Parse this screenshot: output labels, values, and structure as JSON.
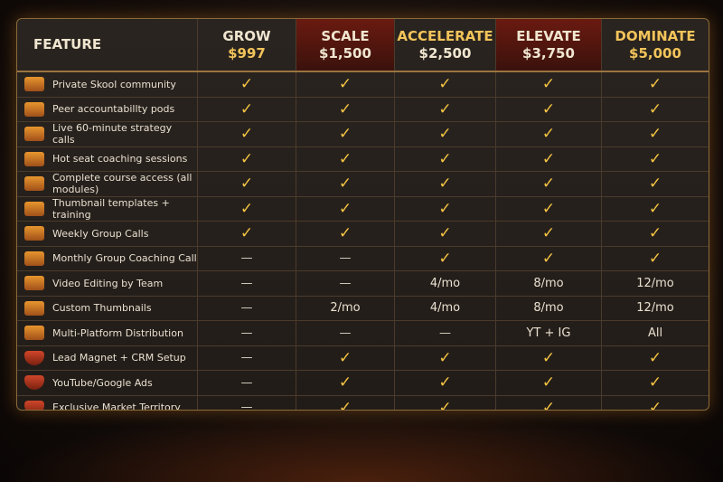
{
  "header": {
    "feature": "FEATURE",
    "plans": [
      {
        "name": "GROW",
        "price": "$997"
      },
      {
        "name": "SCALE",
        "price": "$1,500"
      },
      {
        "name": "ACCELERATE",
        "price": "$2,500"
      },
      {
        "name": "ELEVATE",
        "price": "$3,750"
      },
      {
        "name": "DOMINATE",
        "price": "$5,000"
      }
    ]
  },
  "rows": [
    {
      "feature": "Private Skool community",
      "icon": "chat-icon",
      "v": [
        "✓",
        "✓",
        "✓",
        "✓",
        "✓"
      ]
    },
    {
      "feature": "Peer accountabillty pods",
      "icon": "group-icon",
      "v": [
        "✓",
        "✓",
        "✓",
        "✓",
        "✓"
      ]
    },
    {
      "feature": "Live 60-minute strategy calls",
      "icon": "clock-icon",
      "v": [
        "✓",
        "✓",
        "✓",
        "✓",
        "✓"
      ]
    },
    {
      "feature": "Hot seat coaching sessions",
      "icon": "coaching-icon",
      "v": [
        "✓",
        "✓",
        "✓",
        "✓",
        "✓"
      ]
    },
    {
      "feature": "Complete course access (all modules)",
      "icon": "video-icon",
      "v": [
        "✓",
        "✓",
        "✓",
        "✓",
        "✓"
      ]
    },
    {
      "feature": "Thumbnail templates + training",
      "icon": "group-icon",
      "v": [
        "✓",
        "✓",
        "✓",
        "✓",
        "✓"
      ]
    },
    {
      "feature": "Weekly Group Calls",
      "icon": "group-icon",
      "v": [
        "✓",
        "✓",
        "✓",
        "✓",
        "✓"
      ]
    },
    {
      "feature": "Monthly Group Coaching Call",
      "icon": "image-icon",
      "v": [
        "—",
        "—",
        "✓",
        "✓",
        "✓"
      ]
    },
    {
      "feature": "Video Editing by Team",
      "icon": "toggle-icon",
      "v": [
        "—",
        "—",
        "4/mo",
        "8/mo",
        "12/mo"
      ]
    },
    {
      "feature": "Custom Thumbnails",
      "icon": "image-icon",
      "v": [
        "—",
        "2/mo",
        "4/mo",
        "8/mo",
        "12/mo"
      ]
    },
    {
      "feature": "Multi-Platform Distribution",
      "icon": "magnet-icon",
      "v": [
        "—",
        "—",
        "—",
        "YT + IG",
        "All"
      ]
    },
    {
      "feature": "Lead Magnet + CRM Setup",
      "icon": "shield-icon",
      "v": [
        "—",
        "✓",
        "✓",
        "✓",
        "✓"
      ]
    },
    {
      "feature": "YouTube/Google Ads",
      "icon": "shield-icon",
      "v": [
        "—",
        "✓",
        "✓",
        "✓",
        "✓"
      ]
    },
    {
      "feature": "Exclusive Market Territory",
      "icon": "shield-icon",
      "v": [
        "—",
        "✓",
        "✓",
        "✓",
        "✓"
      ]
    }
  ],
  "colors": {
    "accent": "#f5c542",
    "highlight": "#6a1a10",
    "border": "#8a6a3a"
  }
}
